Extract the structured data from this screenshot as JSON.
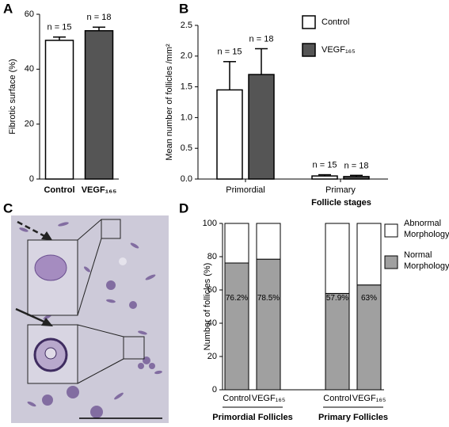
{
  "chart_data": [
    {
      "type": "bar",
      "panel_label": "A",
      "ylabel": "Fibrotic surface (%)",
      "categories": [
        "Control",
        "VEGF₁₆₅"
      ],
      "colors": [
        "#ffffff",
        "#555555"
      ],
      "values": [
        50.5,
        54
      ],
      "errors": [
        1.2,
        1.3
      ],
      "n_labels": [
        "n = 15",
        "n = 18"
      ],
      "ylim": [
        0,
        60
      ],
      "yticks": [
        0,
        20,
        40,
        60
      ]
    },
    {
      "type": "grouped_bar",
      "panel_label": "B",
      "ylabel": "Mean number of follicles /mm²",
      "xlabel": "Follicle stages",
      "categories": [
        "Primordial",
        "Primary"
      ],
      "series": [
        {
          "name": "Control",
          "color": "#ffffff",
          "values": [
            1.45,
            0.05
          ],
          "errors": [
            0.46,
            0.02
          ],
          "n_labels": [
            "n = 15",
            "n = 15"
          ]
        },
        {
          "name": "VEGF₁₆₅",
          "color": "#555555",
          "values": [
            1.7,
            0.04
          ],
          "errors": [
            0.42,
            0.02
          ],
          "n_labels": [
            "n = 18",
            "n = 18"
          ]
        }
      ],
      "ylim": [
        0,
        2.5
      ],
      "yticks": [
        {
          "value": 0,
          "label": "0.0"
        },
        0.5,
        {
          "value": 1,
          "label": "1.0"
        },
        1.5,
        {
          "value": 2,
          "label": "2.0"
        },
        2.5
      ]
    },
    {
      "type": "stacked_bar",
      "panel_label": "D",
      "ylabel": "Number of follicles (%)",
      "categories": [
        "Control",
        "VEGF₁₆₅",
        "Control",
        "VEGF₁₆₅"
      ],
      "groups": [
        "Primordial Follicles",
        "Primary Follicles"
      ],
      "series": [
        {
          "name": "Normal Morphology",
          "color": "#a0a0a0",
          "values": [
            76.2,
            78.5,
            57.9,
            63
          ],
          "value_labels": [
            "76.2%",
            "78.5%",
            "57.9%",
            "63%"
          ]
        },
        {
          "name": "Abnormal Morphology",
          "color": "#ffffff",
          "values": [
            23.8,
            21.5,
            42.1,
            37
          ]
        }
      ],
      "ylim": [
        0,
        100
      ],
      "yticks": [
        0,
        20,
        40,
        60,
        80,
        100
      ]
    }
  ],
  "image_panel": {
    "panel_label": "C"
  }
}
